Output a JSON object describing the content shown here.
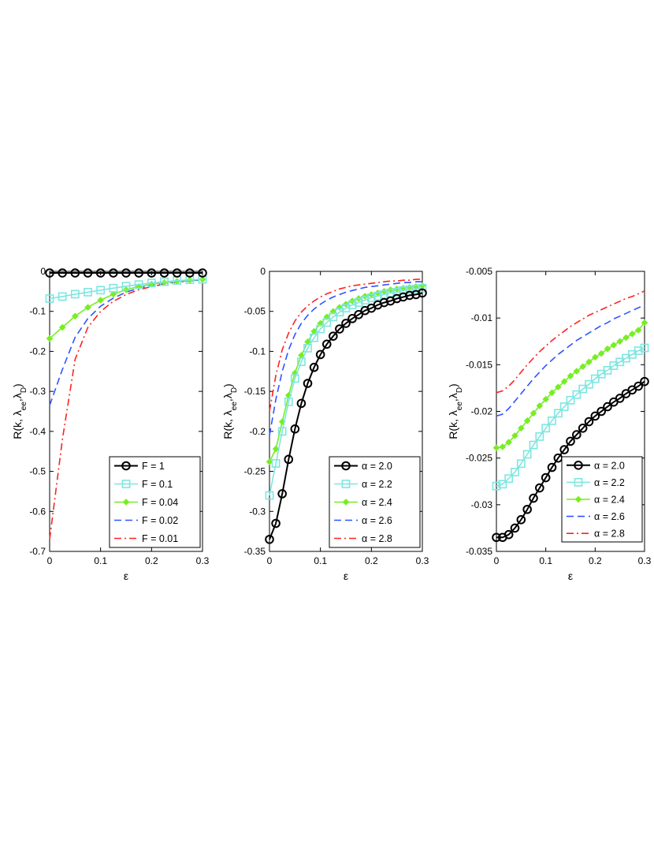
{
  "figure": {
    "background": "#ffffff",
    "colors": {
      "black": "#000000",
      "cyan": "#7fe6e0",
      "green": "#77ee22",
      "blue": "#2f55ff",
      "red": "#ff2222"
    }
  },
  "chart_data": [
    {
      "type": "line",
      "panel": "left",
      "title": "",
      "xlabel": "ε",
      "ylabel_parts": {
        "main": "R(k, λ",
        "sub1": "ee",
        "mid": ",λ",
        "sub2": "D",
        "end": ")"
      },
      "xlim": [
        0,
        0.3
      ],
      "ylim": [
        -0.7,
        0
      ],
      "xticks": [
        0,
        0.1,
        0.2,
        0.3
      ],
      "xtick_labels": [
        "0",
        "0.1",
        "0.2",
        "0.3"
      ],
      "yticks": [
        0,
        -0.1,
        -0.2,
        -0.3,
        -0.4,
        -0.5,
        -0.6,
        -0.7
      ],
      "ytick_labels": [
        "0",
        "-0.1",
        "-0.2",
        "-0.3",
        "-0.4",
        "-0.5",
        "-0.6",
        "-0.7"
      ],
      "grid": false,
      "legend_position": "bottom-right",
      "x": [
        0,
        0.025,
        0.05,
        0.075,
        0.1,
        0.125,
        0.15,
        0.175,
        0.2,
        0.225,
        0.25,
        0.275,
        0.3
      ],
      "series": [
        {
          "name": "F = 1",
          "color": "black",
          "style": "solid",
          "marker": "circle",
          "marker_every": 1,
          "values": [
            -0.004,
            -0.004,
            -0.004,
            -0.004,
            -0.004,
            -0.004,
            -0.004,
            -0.004,
            -0.004,
            -0.004,
            -0.004,
            -0.004,
            -0.004
          ]
        },
        {
          "name": "F = 0.1",
          "color": "cyan",
          "style": "solid",
          "marker": "square",
          "marker_every": 1,
          "values": [
            -0.068,
            -0.063,
            -0.057,
            -0.052,
            -0.047,
            -0.042,
            -0.037,
            -0.033,
            -0.029,
            -0.026,
            -0.023,
            -0.021,
            -0.02
          ]
        },
        {
          "name": "F = 0.04",
          "color": "green",
          "style": "solid",
          "marker": "diamond",
          "marker_every": 1,
          "values": [
            -0.168,
            -0.14,
            -0.112,
            -0.09,
            -0.072,
            -0.057,
            -0.046,
            -0.038,
            -0.032,
            -0.028,
            -0.025,
            -0.022,
            -0.02
          ]
        },
        {
          "name": "F = 0.02",
          "color": "blue",
          "style": "dashed",
          "marker": "none",
          "marker_every": 0,
          "values": [
            -0.335,
            -0.245,
            -0.165,
            -0.118,
            -0.087,
            -0.067,
            -0.052,
            -0.042,
            -0.035,
            -0.03,
            -0.026,
            -0.023,
            -0.021
          ]
        },
        {
          "name": "F = 0.01",
          "color": "red",
          "style": "dashdot",
          "marker": "none",
          "marker_every": 0,
          "values": [
            -0.67,
            -0.42,
            -0.22,
            -0.14,
            -0.1,
            -0.075,
            -0.058,
            -0.046,
            -0.038,
            -0.032,
            -0.027,
            -0.024,
            -0.021
          ]
        }
      ]
    },
    {
      "type": "line",
      "panel": "middle",
      "title": "",
      "xlabel": "ε",
      "ylabel_parts": {
        "main": "R(k, λ",
        "sub1": "ee",
        "mid": ",λ",
        "sub2": "D",
        "end": ")"
      },
      "xlim": [
        0,
        0.3
      ],
      "ylim": [
        -0.35,
        0
      ],
      "xticks": [
        0,
        0.1,
        0.2,
        0.3
      ],
      "xtick_labels": [
        "0",
        "0.1",
        "0.2",
        "0.3"
      ],
      "yticks": [
        0,
        -0.05,
        -0.1,
        -0.15,
        -0.2,
        -0.25,
        -0.3,
        -0.35
      ],
      "ytick_labels": [
        "0",
        "-0.05",
        "-0.1",
        "-0.15",
        "-0.2",
        "-0.25",
        "-0.3",
        "-0.35"
      ],
      "grid": false,
      "legend_position": "bottom-right",
      "x": [
        0,
        0.0125,
        0.025,
        0.0375,
        0.05,
        0.0625,
        0.075,
        0.0875,
        0.1,
        0.1125,
        0.125,
        0.1375,
        0.15,
        0.1625,
        0.175,
        0.1875,
        0.2,
        0.2125,
        0.225,
        0.2375,
        0.25,
        0.2625,
        0.275,
        0.2875,
        0.3
      ],
      "series": [
        {
          "name": "α = 2.0",
          "color": "black",
          "style": "solid",
          "marker": "circle",
          "marker_every": 1,
          "values": [
            -0.335,
            -0.315,
            -0.278,
            -0.235,
            -0.197,
            -0.165,
            -0.14,
            -0.12,
            -0.104,
            -0.091,
            -0.081,
            -0.072,
            -0.065,
            -0.059,
            -0.054,
            -0.049,
            -0.046,
            -0.042,
            -0.039,
            -0.037,
            -0.034,
            -0.032,
            -0.03,
            -0.029,
            -0.027
          ]
        },
        {
          "name": "α = 2.2",
          "color": "cyan",
          "style": "solid",
          "marker": "square",
          "marker_every": 1,
          "values": [
            -0.28,
            -0.24,
            -0.2,
            -0.163,
            -0.134,
            -0.113,
            -0.096,
            -0.083,
            -0.072,
            -0.064,
            -0.057,
            -0.051,
            -0.046,
            -0.042,
            -0.039,
            -0.036,
            -0.033,
            -0.031,
            -0.029,
            -0.027,
            -0.026,
            -0.024,
            -0.023,
            -0.022,
            -0.021
          ]
        },
        {
          "name": "α = 2.4",
          "color": "green",
          "style": "solid",
          "marker": "diamond",
          "marker_every": 1,
          "values": [
            -0.238,
            -0.222,
            -0.188,
            -0.155,
            -0.127,
            -0.105,
            -0.088,
            -0.075,
            -0.065,
            -0.057,
            -0.05,
            -0.045,
            -0.041,
            -0.037,
            -0.034,
            -0.031,
            -0.029,
            -0.027,
            -0.025,
            -0.023,
            -0.022,
            -0.021,
            -0.02,
            -0.019,
            -0.018
          ]
        },
        {
          "name": "α = 2.6",
          "color": "blue",
          "style": "dashed",
          "marker": "none",
          "marker_every": 0,
          "values": [
            -0.205,
            -0.16,
            -0.125,
            -0.098,
            -0.079,
            -0.065,
            -0.055,
            -0.047,
            -0.041,
            -0.036,
            -0.032,
            -0.029,
            -0.026,
            -0.024,
            -0.022,
            -0.02,
            -0.019,
            -0.018,
            -0.017,
            -0.016,
            -0.015,
            -0.014,
            -0.014,
            -0.013,
            -0.013
          ]
        },
        {
          "name": "α = 2.8",
          "color": "red",
          "style": "dashdot",
          "marker": "none",
          "marker_every": 0,
          "values": [
            -0.175,
            -0.13,
            -0.098,
            -0.077,
            -0.062,
            -0.051,
            -0.043,
            -0.037,
            -0.032,
            -0.028,
            -0.025,
            -0.022,
            -0.02,
            -0.018,
            -0.017,
            -0.016,
            -0.015,
            -0.014,
            -0.013,
            -0.012,
            -0.012,
            -0.011,
            -0.011,
            -0.01,
            -0.01
          ]
        }
      ]
    },
    {
      "type": "line",
      "panel": "right",
      "title": "",
      "xlabel": "ε",
      "ylabel_parts": {
        "main": "R(k, λ",
        "sub1": "ee",
        "mid": ",λ",
        "sub2": "D",
        "end": ")"
      },
      "xlim": [
        0,
        0.3
      ],
      "ylim": [
        -0.035,
        -0.005
      ],
      "xticks": [
        0,
        0.1,
        0.2,
        0.3
      ],
      "xtick_labels": [
        "0",
        "0.1",
        "0.2",
        "0.3"
      ],
      "yticks": [
        -0.005,
        -0.01,
        -0.015,
        -0.02,
        -0.025,
        -0.03,
        -0.035
      ],
      "ytick_labels": [
        "-0.005",
        "-0.01",
        "-0.015",
        "-0.02",
        "-0.025",
        "-0.03",
        "-0.035"
      ],
      "grid": false,
      "legend_position": "bottom-right",
      "x": [
        0,
        0.0125,
        0.025,
        0.0375,
        0.05,
        0.0625,
        0.075,
        0.0875,
        0.1,
        0.1125,
        0.125,
        0.1375,
        0.15,
        0.1625,
        0.175,
        0.1875,
        0.2,
        0.2125,
        0.225,
        0.2375,
        0.25,
        0.2625,
        0.275,
        0.2875,
        0.3
      ],
      "series": [
        {
          "name": "α = 2.0",
          "color": "black",
          "style": "solid",
          "marker": "circle",
          "marker_every": 1,
          "values": [
            -0.0335,
            -0.0335,
            -0.0332,
            -0.0325,
            -0.0316,
            -0.0305,
            -0.0293,
            -0.0282,
            -0.0271,
            -0.026,
            -0.025,
            -0.0241,
            -0.0232,
            -0.0225,
            -0.0218,
            -0.0211,
            -0.0205,
            -0.02,
            -0.0195,
            -0.019,
            -0.0186,
            -0.0181,
            -0.0177,
            -0.0173,
            -0.0168
          ]
        },
        {
          "name": "α = 2.2",
          "color": "cyan",
          "style": "solid",
          "marker": "square",
          "marker_every": 1,
          "values": [
            -0.028,
            -0.0278,
            -0.0272,
            -0.0265,
            -0.0256,
            -0.0246,
            -0.0236,
            -0.0227,
            -0.0218,
            -0.021,
            -0.0202,
            -0.0195,
            -0.0188,
            -0.0182,
            -0.0176,
            -0.0171,
            -0.0165,
            -0.016,
            -0.0156,
            -0.0151,
            -0.0147,
            -0.0143,
            -0.0139,
            -0.0135,
            -0.0132
          ]
        },
        {
          "name": "α = 2.4",
          "color": "green",
          "style": "solid",
          "marker": "diamond",
          "marker_every": 1,
          "values": [
            -0.0239,
            -0.0238,
            -0.0233,
            -0.0226,
            -0.0218,
            -0.021,
            -0.0202,
            -0.0194,
            -0.0187,
            -0.018,
            -0.0174,
            -0.0168,
            -0.0162,
            -0.0157,
            -0.0152,
            -0.0147,
            -0.0142,
            -0.0138,
            -0.0133,
            -0.0129,
            -0.0125,
            -0.0121,
            -0.0117,
            -0.0113,
            -0.0105
          ]
        },
        {
          "name": "α = 2.6",
          "color": "blue",
          "style": "dashed",
          "marker": "none",
          "marker_every": 0,
          "values": [
            -0.0205,
            -0.0203,
            -0.0197,
            -0.0189,
            -0.0181,
            -0.0173,
            -0.0165,
            -0.0158,
            -0.0151,
            -0.0145,
            -0.0139,
            -0.0134,
            -0.0129,
            -0.0124,
            -0.012,
            -0.0116,
            -0.0112,
            -0.0108,
            -0.0105,
            -0.0101,
            -0.0098,
            -0.0095,
            -0.0092,
            -0.0089,
            -0.0086
          ]
        },
        {
          "name": "α = 2.8",
          "color": "red",
          "style": "dashdot",
          "marker": "none",
          "marker_every": 0,
          "values": [
            -0.018,
            -0.0178,
            -0.0173,
            -0.0166,
            -0.0158,
            -0.015,
            -0.0143,
            -0.0136,
            -0.013,
            -0.0124,
            -0.0119,
            -0.0114,
            -0.0109,
            -0.0105,
            -0.0101,
            -0.0097,
            -0.0094,
            -0.0091,
            -0.0088,
            -0.0085,
            -0.0082,
            -0.0079,
            -0.0077,
            -0.0074,
            -0.0071
          ]
        }
      ]
    }
  ]
}
